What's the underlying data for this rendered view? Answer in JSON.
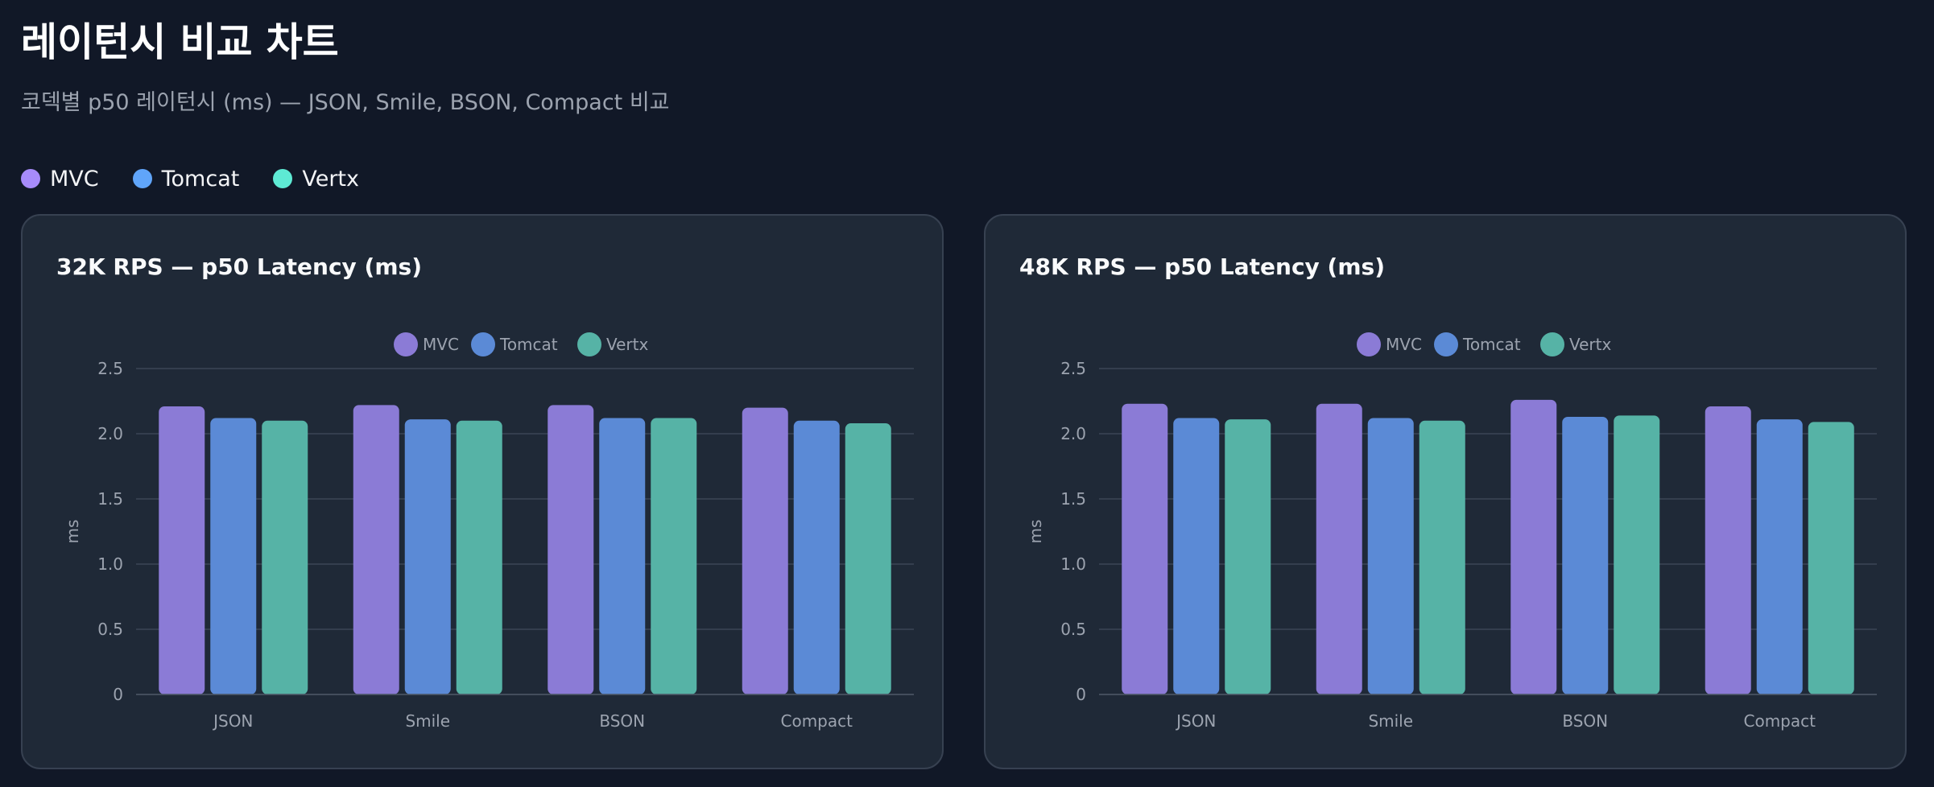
{
  "page": {
    "title": "레이턴시 비교 차트",
    "subtitle": "코덱별 p50 레이턴시 (ms) — JSON, Smile, BSON, Compact 비교"
  },
  "legend": [
    {
      "name": "MVC",
      "color": "#a78bfa"
    },
    {
      "name": "Tomcat",
      "color": "#60a5fa"
    },
    {
      "name": "Vertx",
      "color": "#5eead4"
    }
  ],
  "chart_data": [
    {
      "type": "bar",
      "title": "32K RPS — p50 Latency (ms)",
      "ylabel": "ms",
      "ylim": [
        0,
        2.5
      ],
      "yticks": [
        0,
        0.5,
        1.0,
        1.5,
        2.0,
        2.5
      ],
      "ytick_labels": [
        "0",
        "0.5",
        "1.0",
        "1.5",
        "2.0",
        "2.5"
      ],
      "grid": true,
      "legend_position": "top-center",
      "categories": [
        "JSON",
        "Smile",
        "BSON",
        "Compact"
      ],
      "series": [
        {
          "name": "MVC",
          "color": "#8b7bd6",
          "values": [
            2.21,
            2.22,
            2.22,
            2.2
          ]
        },
        {
          "name": "Tomcat",
          "color": "#5b8ad6",
          "values": [
            2.12,
            2.11,
            2.12,
            2.1
          ]
        },
        {
          "name": "Vertx",
          "color": "#56b3a6",
          "values": [
            2.1,
            2.1,
            2.12,
            2.08
          ]
        }
      ]
    },
    {
      "type": "bar",
      "title": "48K RPS — p50 Latency (ms)",
      "ylabel": "ms",
      "ylim": [
        0,
        2.5
      ],
      "yticks": [
        0,
        0.5,
        1.0,
        1.5,
        2.0,
        2.5
      ],
      "ytick_labels": [
        "0",
        "0.5",
        "1.0",
        "1.5",
        "2.0",
        "2.5"
      ],
      "grid": true,
      "legend_position": "top-center",
      "categories": [
        "JSON",
        "Smile",
        "BSON",
        "Compact"
      ],
      "series": [
        {
          "name": "MVC",
          "color": "#8b7bd6",
          "values": [
            2.23,
            2.23,
            2.26,
            2.21
          ]
        },
        {
          "name": "Tomcat",
          "color": "#5b8ad6",
          "values": [
            2.12,
            2.12,
            2.13,
            2.11
          ]
        },
        {
          "name": "Vertx",
          "color": "#56b3a6",
          "values": [
            2.11,
            2.1,
            2.14,
            2.09
          ]
        }
      ]
    }
  ]
}
